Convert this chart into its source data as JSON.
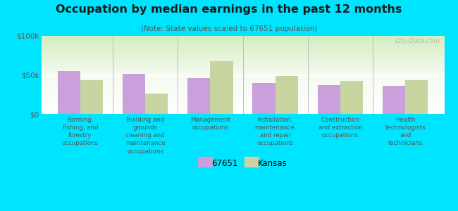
{
  "title": "Occupation by median earnings in the past 12 months",
  "subtitle": "(Note: State values scaled to 67651 population)",
  "categories": [
    "Farming,\nfishing, and\nforestry\noccupations",
    "Building and\ngrounds\ncleaning and\nmaintenance\noccupations",
    "Management\noccupations",
    "Installation,\nmaintenance,\nand repair\noccupations",
    "Construction\nand extraction\noccupations",
    "Health\ntechnologists\nand\ntechnicians"
  ],
  "values_67651": [
    55000,
    51000,
    46000,
    40000,
    37000,
    36000
  ],
  "values_kansas": [
    43000,
    26000,
    68000,
    49000,
    42000,
    43000
  ],
  "color_67651": "#c9a0dc",
  "color_kansas": "#c8d4a0",
  "bar_width": 0.35,
  "ylim": [
    0,
    100000
  ],
  "yticks": [
    0,
    50000,
    100000
  ],
  "ytick_labels": [
    "$0",
    "$50k",
    "$100k"
  ],
  "background_color": "#00e5ff",
  "legend_label_67651": "67651",
  "legend_label_kansas": "Kansas",
  "watermark": "City-Data.com",
  "separator_color": "#bbbbbb",
  "bottom_line_color": "#999999"
}
